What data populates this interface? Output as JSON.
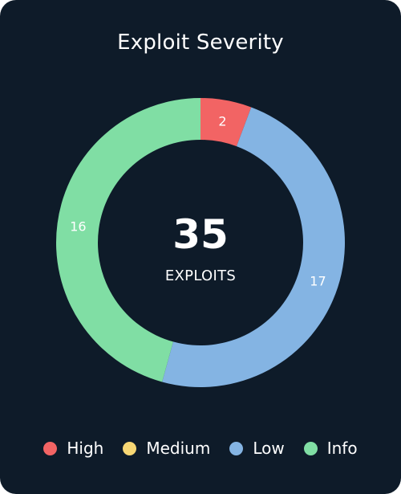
{
  "chart_data": {
    "type": "pie",
    "title": "Exploit Severity",
    "categories": [
      "High",
      "Medium",
      "Low",
      "Info"
    ],
    "values": [
      2,
      0,
      17,
      16
    ],
    "colors": [
      "#f26464",
      "#f7d774",
      "#84b4e3",
      "#80dea4"
    ],
    "total": "35",
    "total_label": "EXPLOITS",
    "legend_position": "bottom"
  }
}
